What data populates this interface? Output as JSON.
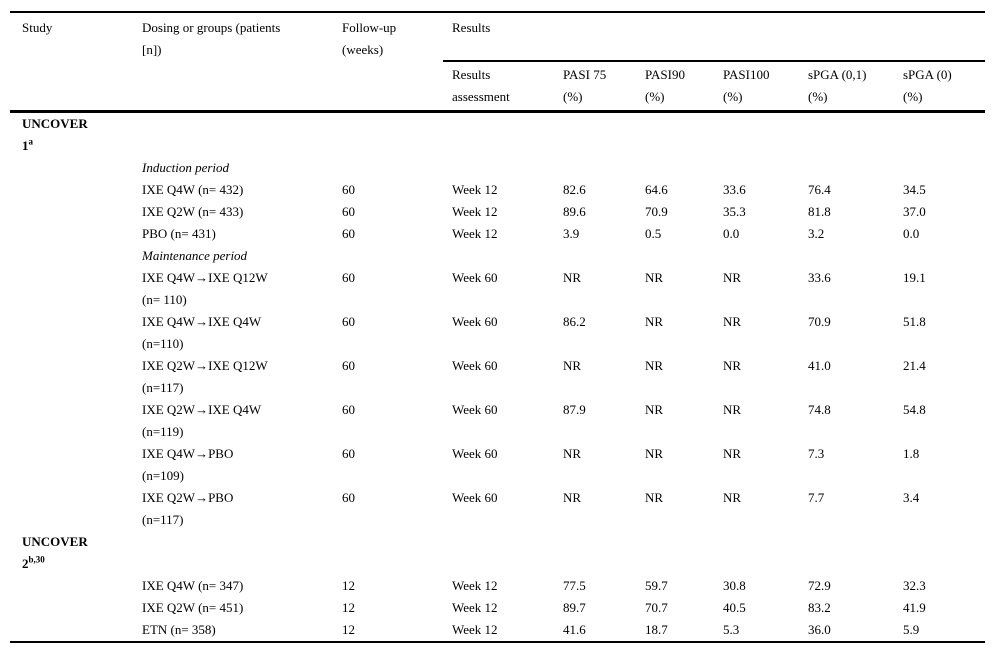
{
  "page": {
    "background_color": "#ffffff",
    "text_color": "#000000",
    "rule_color": "#000000"
  },
  "table": {
    "header": {
      "study": "Study",
      "dosing": [
        "Dosing or groups (patients",
        "[n])"
      ],
      "followup": [
        "Follow-up",
        "(weeks)"
      ],
      "results_group": "Results",
      "sub_columns": [
        [
          "Results",
          "assessment"
        ],
        [
          "PASI 75",
          "(%)"
        ],
        [
          "PASI90",
          "(%)"
        ],
        [
          "PASI100",
          "(%)"
        ],
        [
          "sPGA (0,1)",
          "(%)"
        ],
        [
          "sPGA (0)",
          "(%)"
        ]
      ]
    },
    "rows": [
      {
        "type": "section",
        "lines": [
          "UNCOVER",
          "1"
        ],
        "sup": "a"
      },
      {
        "type": "period",
        "label": "Induction period"
      },
      {
        "type": "data",
        "dosing": [
          "IXE Q4W (n= 432)"
        ],
        "followup": "60",
        "assessment": "Week 12",
        "values": [
          "82.6",
          "64.6",
          "33.6",
          "76.4",
          "34.5"
        ]
      },
      {
        "type": "data",
        "dosing": [
          "IXE Q2W (n= 433)"
        ],
        "followup": "60",
        "assessment": "Week 12",
        "values": [
          "89.6",
          "70.9",
          "35.3",
          "81.8",
          "37.0"
        ]
      },
      {
        "type": "data",
        "dosing": [
          "PBO (n= 431)"
        ],
        "followup": "60",
        "assessment": "Week 12",
        "values": [
          "3.9",
          "0.5",
          "0.0",
          "3.2",
          "0.0"
        ]
      },
      {
        "type": "period",
        "label": "Maintenance period"
      },
      {
        "type": "data",
        "dosing": [
          "IXE Q4W→IXE Q12W",
          "(n= 110)"
        ],
        "followup": "60",
        "assessment": "Week 60",
        "values": [
          "NR",
          "NR",
          "NR",
          "33.6",
          "19.1"
        ]
      },
      {
        "type": "data",
        "dosing": [
          "IXE Q4W→IXE Q4W",
          "(n=110)"
        ],
        "followup": "60",
        "assessment": "Week 60",
        "values": [
          "86.2",
          "NR",
          "NR",
          "70.9",
          "51.8"
        ]
      },
      {
        "type": "data",
        "dosing": [
          "IXE Q2W→IXE Q12W",
          "(n=117)"
        ],
        "followup": "60",
        "assessment": "Week 60",
        "values": [
          "NR",
          "NR",
          "NR",
          "41.0",
          "21.4"
        ]
      },
      {
        "type": "data",
        "dosing": [
          "IXE Q2W→IXE Q4W",
          "(n=119)"
        ],
        "followup": "60",
        "assessment": "Week 60",
        "values": [
          "87.9",
          "NR",
          "NR",
          "74.8",
          "54.8"
        ]
      },
      {
        "type": "data",
        "dosing": [
          "IXE Q4W→PBO",
          "(n=109)"
        ],
        "followup": "60",
        "assessment": "Week 60",
        "values": [
          "NR",
          "NR",
          "NR",
          "7.3",
          "1.8"
        ]
      },
      {
        "type": "data",
        "dosing": [
          "IXE Q2W→PBO",
          "(n=117)"
        ],
        "followup": "60",
        "assessment": "Week 60",
        "values": [
          "NR",
          "NR",
          "NR",
          "7.7",
          "3.4"
        ]
      },
      {
        "type": "section",
        "lines": [
          "UNCOVER",
          "2"
        ],
        "sup": "b,30"
      },
      {
        "type": "data",
        "dosing": [
          "IXE Q4W (n= 347)"
        ],
        "followup": "12",
        "assessment": "Week 12",
        "values": [
          "77.5",
          "59.7",
          "30.8",
          "72.9",
          "32.3"
        ]
      },
      {
        "type": "data",
        "dosing": [
          "IXE Q2W (n= 451)"
        ],
        "followup": "12",
        "assessment": "Week 12",
        "values": [
          "89.7",
          "70.7",
          "40.5",
          "83.2",
          "41.9"
        ]
      },
      {
        "type": "data",
        "dosing": [
          "ETN (n= 358)"
        ],
        "followup": "12",
        "assessment": "Week 12",
        "values": [
          "41.6",
          "18.7",
          "5.3",
          "36.0",
          "5.9"
        ]
      }
    ]
  }
}
